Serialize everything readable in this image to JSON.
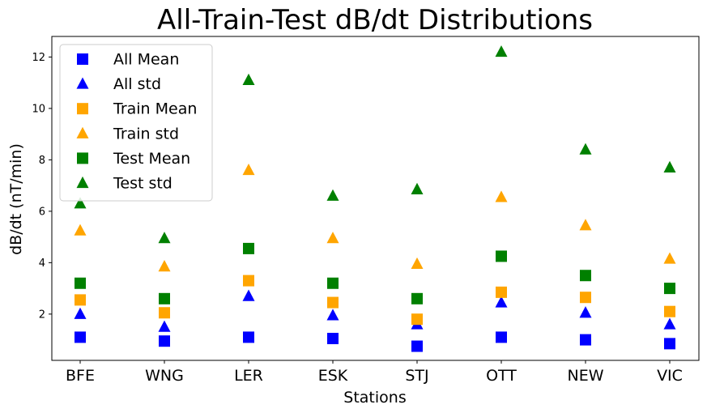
{
  "chart_data": {
    "type": "scatter",
    "title": "All-Train-Test dB/dt Distributions",
    "xlabel": "Stations",
    "ylabel": "dB/dt (nT/min)",
    "categories": [
      "BFE",
      "WNG",
      "LER",
      "ESK",
      "STJ",
      "OTT",
      "NEW",
      "VIC"
    ],
    "ylim": [
      0.2,
      12.8
    ],
    "yticks": [
      2,
      4,
      6,
      8,
      10,
      12
    ],
    "grid": false,
    "legend_position": "top-left",
    "series": [
      {
        "name": "All Mean",
        "marker": "square",
        "color": "#0000ff",
        "values": [
          1.1,
          0.95,
          1.1,
          1.05,
          0.75,
          1.1,
          1.0,
          0.85
        ]
      },
      {
        "name": "All std",
        "marker": "triangle",
        "color": "#0000ff",
        "values": [
          2.0,
          1.5,
          2.7,
          1.95,
          1.6,
          2.45,
          2.05,
          1.6
        ]
      },
      {
        "name": "Train Mean",
        "marker": "square",
        "color": "#ffa500",
        "values": [
          2.55,
          2.05,
          3.3,
          2.45,
          1.8,
          2.85,
          2.65,
          2.1
        ]
      },
      {
        "name": "Train std",
        "marker": "triangle",
        "color": "#ffa500",
        "values": [
          5.25,
          3.85,
          7.6,
          4.95,
          3.95,
          6.55,
          5.45,
          4.15
        ]
      },
      {
        "name": "Test Mean",
        "marker": "square",
        "color": "#008000",
        "values": [
          3.2,
          2.6,
          4.55,
          3.2,
          2.6,
          4.25,
          3.5,
          3.0
        ]
      },
      {
        "name": "Test std",
        "marker": "triangle",
        "color": "#008000",
        "values": [
          6.3,
          4.95,
          11.1,
          6.6,
          6.85,
          12.2,
          8.4,
          7.7
        ]
      }
    ]
  }
}
